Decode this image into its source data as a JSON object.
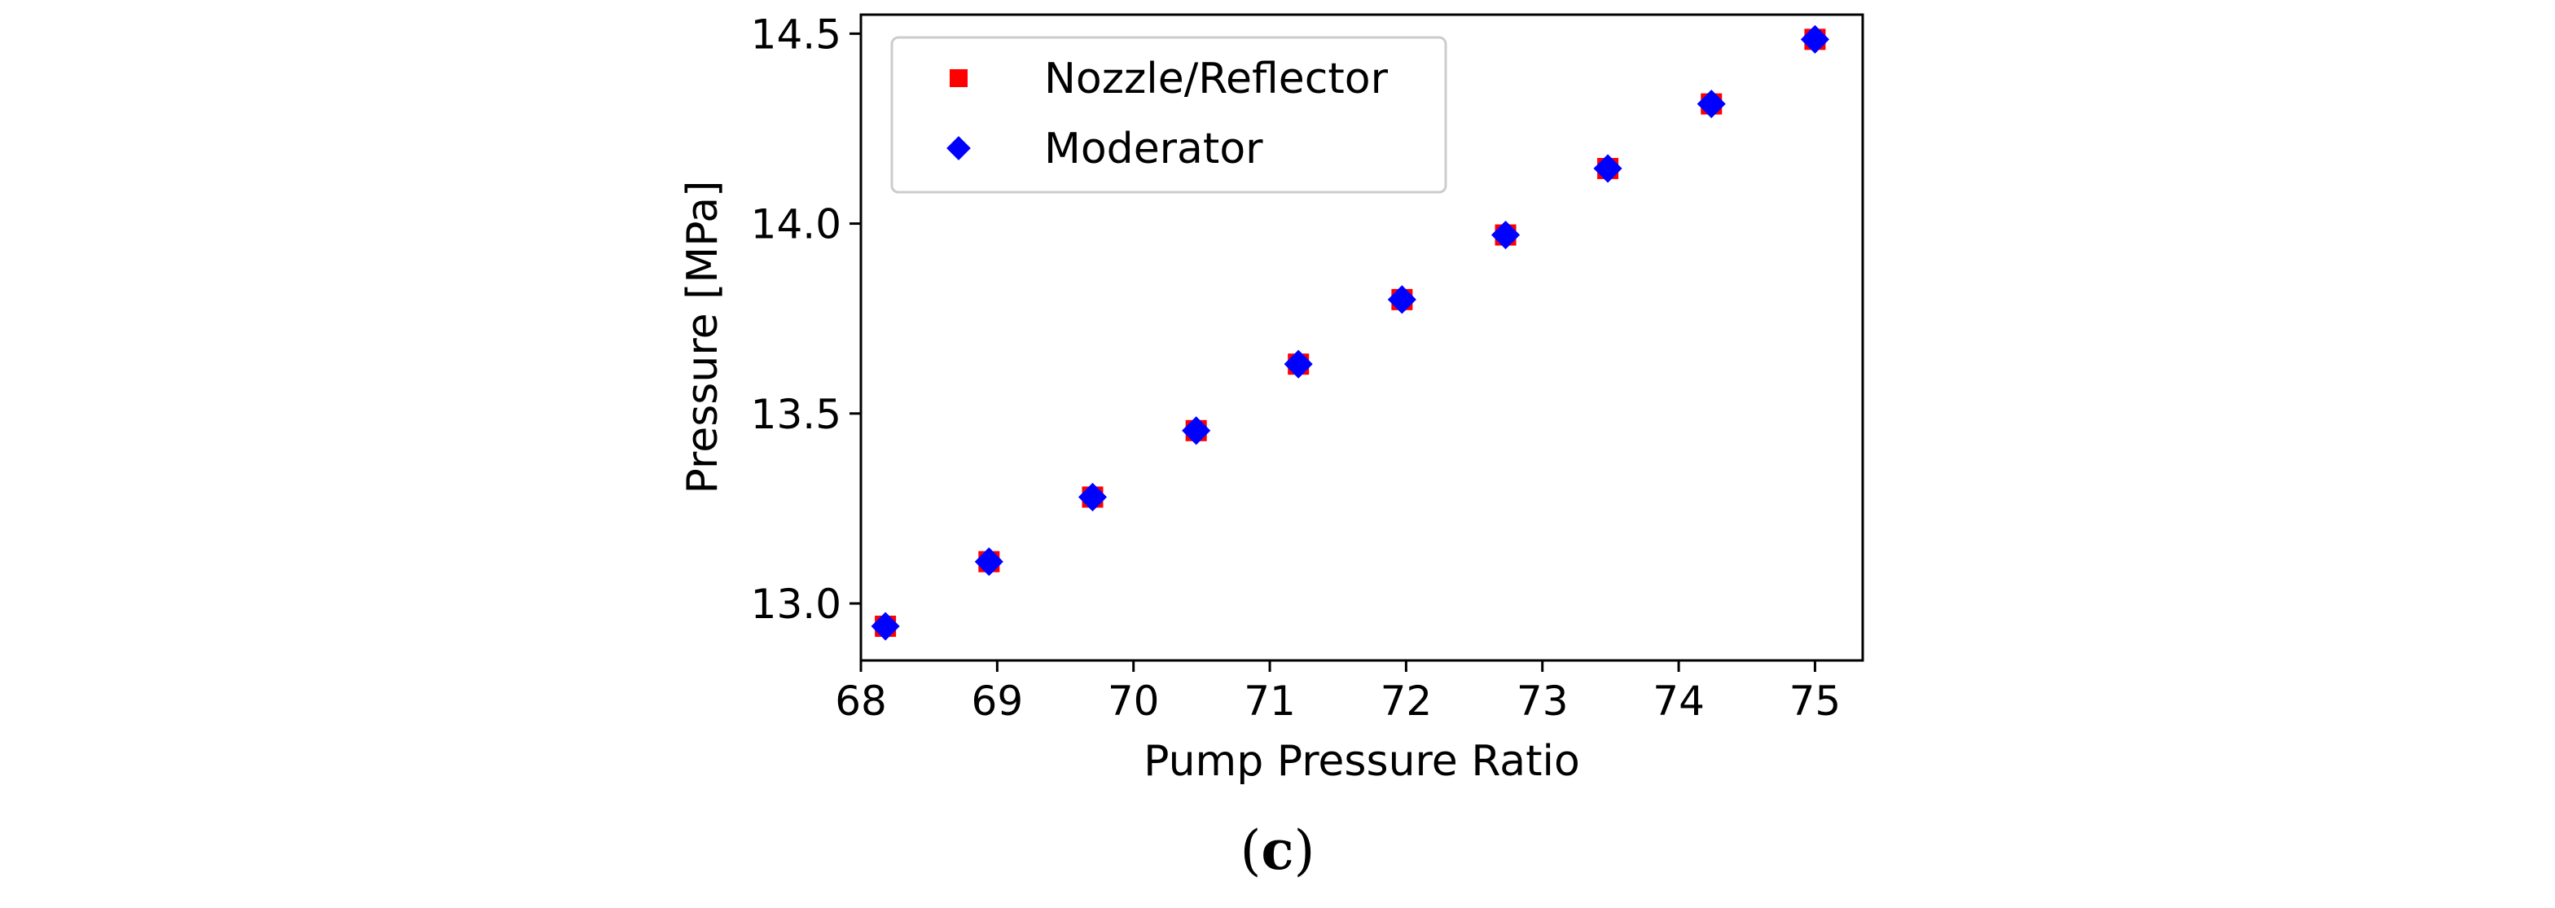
{
  "caption": {
    "open": "(",
    "letter": "c",
    "close": ")"
  },
  "colors": {
    "nozzle": "#ff0000",
    "moderator": "#0000ff",
    "axis": "#000000",
    "legend_border": "#cccccc"
  },
  "chart_data": {
    "type": "scatter",
    "title": "",
    "xlabel": "Pump Pressure Ratio",
    "ylabel": "Pressure [MPa]",
    "xlim": [
      68.0,
      75.35
    ],
    "ylim": [
      12.85,
      14.55
    ],
    "xticks": [
      68,
      69,
      70,
      71,
      72,
      73,
      74,
      75
    ],
    "xtick_labels": [
      "68",
      "69",
      "70",
      "71",
      "72",
      "73",
      "74",
      "75"
    ],
    "yticks": [
      13.0,
      13.5,
      14.0,
      14.5
    ],
    "ytick_labels": [
      "13.0",
      "13.5",
      "14.0",
      "14.5"
    ],
    "legend_position": "upper-left",
    "grid": false,
    "series": [
      {
        "name": "Nozzle/Reflector",
        "marker": "square",
        "color": "#ff0000",
        "x": [
          68.18,
          68.94,
          69.7,
          70.46,
          71.21,
          71.97,
          72.73,
          73.48,
          74.24,
          75.0
        ],
        "y": [
          12.94,
          13.11,
          13.28,
          13.455,
          13.63,
          13.8,
          13.97,
          14.145,
          14.315,
          14.485
        ]
      },
      {
        "name": "Moderator",
        "marker": "diamond",
        "color": "#0000ff",
        "x": [
          68.18,
          68.94,
          69.7,
          70.46,
          71.21,
          71.97,
          72.73,
          73.48,
          74.24,
          75.0
        ],
        "y": [
          12.94,
          13.11,
          13.28,
          13.455,
          13.63,
          13.8,
          13.97,
          14.145,
          14.315,
          14.485
        ]
      }
    ]
  }
}
